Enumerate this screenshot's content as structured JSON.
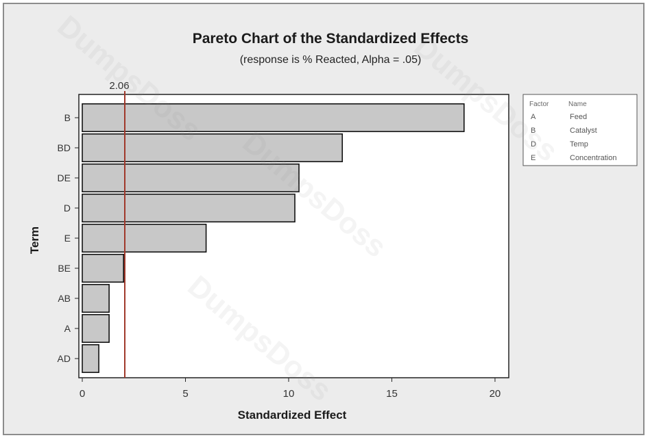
{
  "watermark": "DumpsDoss",
  "chart_data": {
    "type": "bar",
    "orientation": "horizontal",
    "title": "Pareto Chart of the Standardized Effects",
    "subtitle": "(response is % Reacted, Alpha = .05)",
    "xlabel": "Standardized Effect",
    "ylabel": "Term",
    "categories": [
      "B",
      "BD",
      "DE",
      "D",
      "E",
      "BE",
      "AB",
      "A",
      "AD"
    ],
    "values": [
      18.5,
      12.6,
      10.5,
      10.3,
      6.0,
      2.0,
      1.3,
      1.3,
      0.8
    ],
    "xlim": [
      0,
      20.5
    ],
    "xticks": [
      0,
      5,
      10,
      15,
      20
    ],
    "reference_line": {
      "value": 2.06,
      "label": "2.06",
      "color": "#a0382a"
    },
    "bar_color": "#c8c8c8",
    "plot_background": "#ffffff",
    "grid": false,
    "legend_placement": "right",
    "legend": {
      "headers": [
        "Factor",
        "Name"
      ],
      "rows": [
        {
          "factor": "A",
          "name": "Feed"
        },
        {
          "factor": "B",
          "name": "Catalyst"
        },
        {
          "factor": "D",
          "name": "Temp"
        },
        {
          "factor": "E",
          "name": "Concentration"
        }
      ]
    }
  }
}
